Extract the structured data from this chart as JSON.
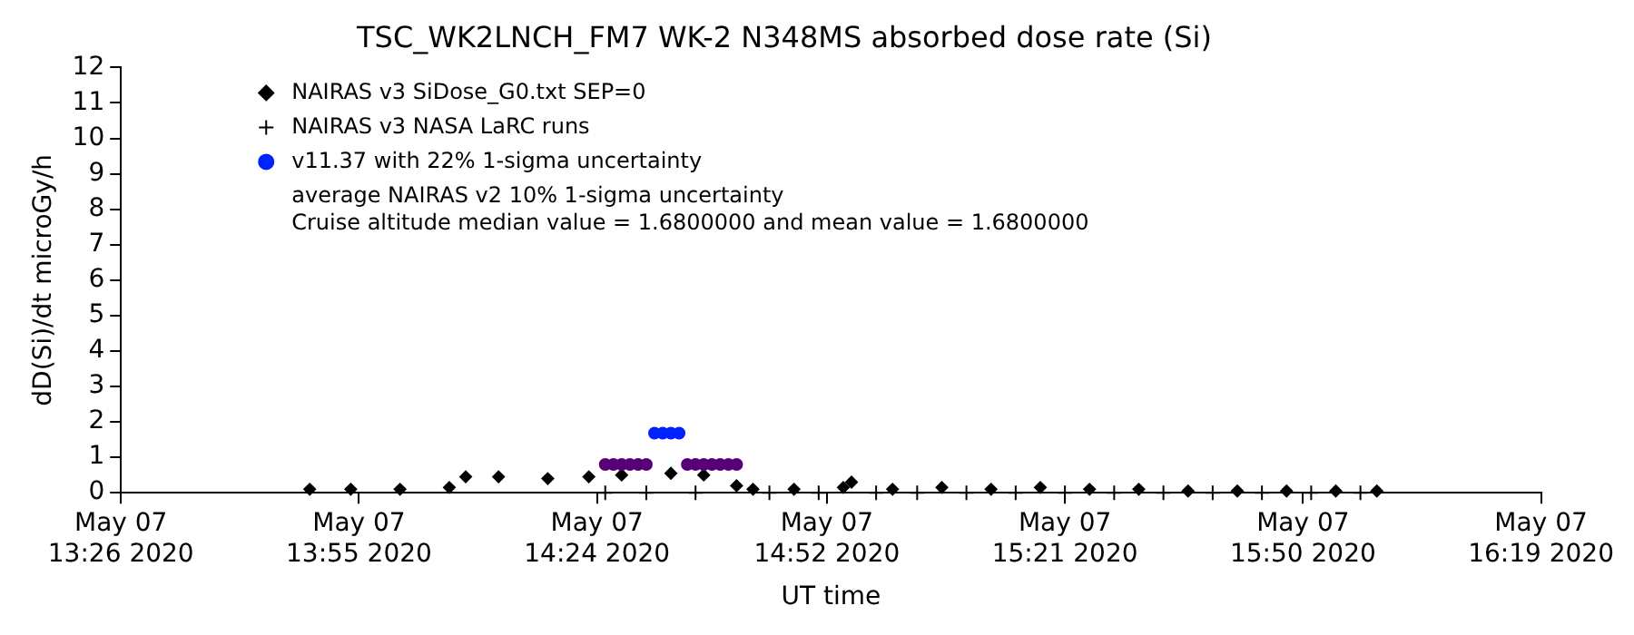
{
  "chart_data": {
    "type": "scatter",
    "title": "TSC_WK2LNCH_FM7 WK-2 N348MS absorbed dose rate (Si)",
    "xlabel": "UT time",
    "ylabel": "dD(Si)/dt microGy/h",
    "annotations": [
      "average NAIRAS v2 10% 1-sigma uncertainty",
      "Cruise altitude median value = 1.6800000 and mean value = 1.6800000"
    ],
    "xlim": [
      "2020-05-07T13:26",
      "2020-05-07T16:19"
    ],
    "xticks": [
      {
        "value": "2020-05-07T13:26",
        "label": "May 07 13:26 2020"
      },
      {
        "value": "2020-05-07T13:55",
        "label": "May 07 13:55 2020"
      },
      {
        "value": "2020-05-07T14:24",
        "label": "May 07 14:24 2020"
      },
      {
        "value": "2020-05-07T14:52",
        "label": "May 07 14:52 2020"
      },
      {
        "value": "2020-05-07T15:21",
        "label": "May 07 15:21 2020"
      },
      {
        "value": "2020-05-07T15:50",
        "label": "May 07 15:50 2020"
      },
      {
        "value": "2020-05-07T16:19",
        "label": "May 07 16:19 2020"
      }
    ],
    "ylim": [
      0,
      12
    ],
    "yticks": [
      0,
      1,
      2,
      3,
      4,
      5,
      6,
      7,
      8,
      9,
      10,
      11,
      12
    ],
    "grid": false,
    "legend": "top left",
    "series": [
      {
        "name": "NAIRAS v3 SiDose_G0.txt SEP=0",
        "color": "#000000",
        "marker": "diamond",
        "x": [
          "2020-05-07T13:49",
          "2020-05-07T13:54",
          "2020-05-07T14:00",
          "2020-05-07T14:06",
          "2020-05-07T14:08",
          "2020-05-07T14:12",
          "2020-05-07T14:18",
          "2020-05-07T14:23",
          "2020-05-07T14:27",
          "2020-05-07T14:33",
          "2020-05-07T14:37",
          "2020-05-07T14:41",
          "2020-05-07T14:43",
          "2020-05-07T14:48",
          "2020-05-07T14:54",
          "2020-05-07T14:55",
          "2020-05-07T15:00",
          "2020-05-07T15:06",
          "2020-05-07T15:12",
          "2020-05-07T15:18",
          "2020-05-07T15:24",
          "2020-05-07T15:30",
          "2020-05-07T15:36",
          "2020-05-07T15:42",
          "2020-05-07T15:48",
          "2020-05-07T15:54",
          "2020-05-07T15:59"
        ],
        "values": [
          0.1,
          0.1,
          0.1,
          0.15,
          0.45,
          0.45,
          0.4,
          0.45,
          0.5,
          0.55,
          0.5,
          0.2,
          0.1,
          0.1,
          0.15,
          0.3,
          0.1,
          0.15,
          0.1,
          0.15,
          0.1,
          0.1,
          0.05,
          0.05,
          0.05,
          0.05,
          0.05
        ]
      },
      {
        "name": "NAIRAS v3 NASA LaRC runs",
        "color": "#000000",
        "marker": "cross",
        "x": [
          "2020-05-07T14:25",
          "2020-05-07T14:30",
          "2020-05-07T14:36",
          "2020-05-07T14:45",
          "2020-05-07T14:51",
          "2020-05-07T14:58",
          "2020-05-07T15:03",
          "2020-05-07T15:09",
          "2020-05-07T15:15",
          "2020-05-07T15:21",
          "2020-05-07T15:27",
          "2020-05-07T15:33",
          "2020-05-07T15:39",
          "2020-05-07T15:45",
          "2020-05-07T15:51",
          "2020-05-07T15:57"
        ],
        "values": [
          0,
          0,
          0,
          0,
          0,
          0,
          0,
          0,
          0,
          0,
          0,
          0,
          0,
          0,
          0,
          0
        ]
      },
      {
        "name": "v11.37 with 22% 1-sigma uncertainty",
        "color": "#0022ff",
        "marker": "circle",
        "x": [
          "2020-05-07T14:31",
          "2020-05-07T14:32",
          "2020-05-07T14:33",
          "2020-05-07T14:34"
        ],
        "values": [
          1.68,
          1.68,
          1.68,
          1.68
        ]
      },
      {
        "color": "#550077",
        "marker": "circle",
        "x": [
          "2020-05-07T14:25",
          "2020-05-07T14:26",
          "2020-05-07T14:27",
          "2020-05-07T14:28",
          "2020-05-07T14:29",
          "2020-05-07T14:30",
          "2020-05-07T14:35",
          "2020-05-07T14:36",
          "2020-05-07T14:37",
          "2020-05-07T14:38",
          "2020-05-07T14:39",
          "2020-05-07T14:40",
          "2020-05-07T14:41"
        ],
        "values": [
          0.8,
          0.8,
          0.8,
          0.8,
          0.8,
          0.8,
          0.8,
          0.8,
          0.8,
          0.8,
          0.8,
          0.8,
          0.8
        ]
      }
    ]
  }
}
